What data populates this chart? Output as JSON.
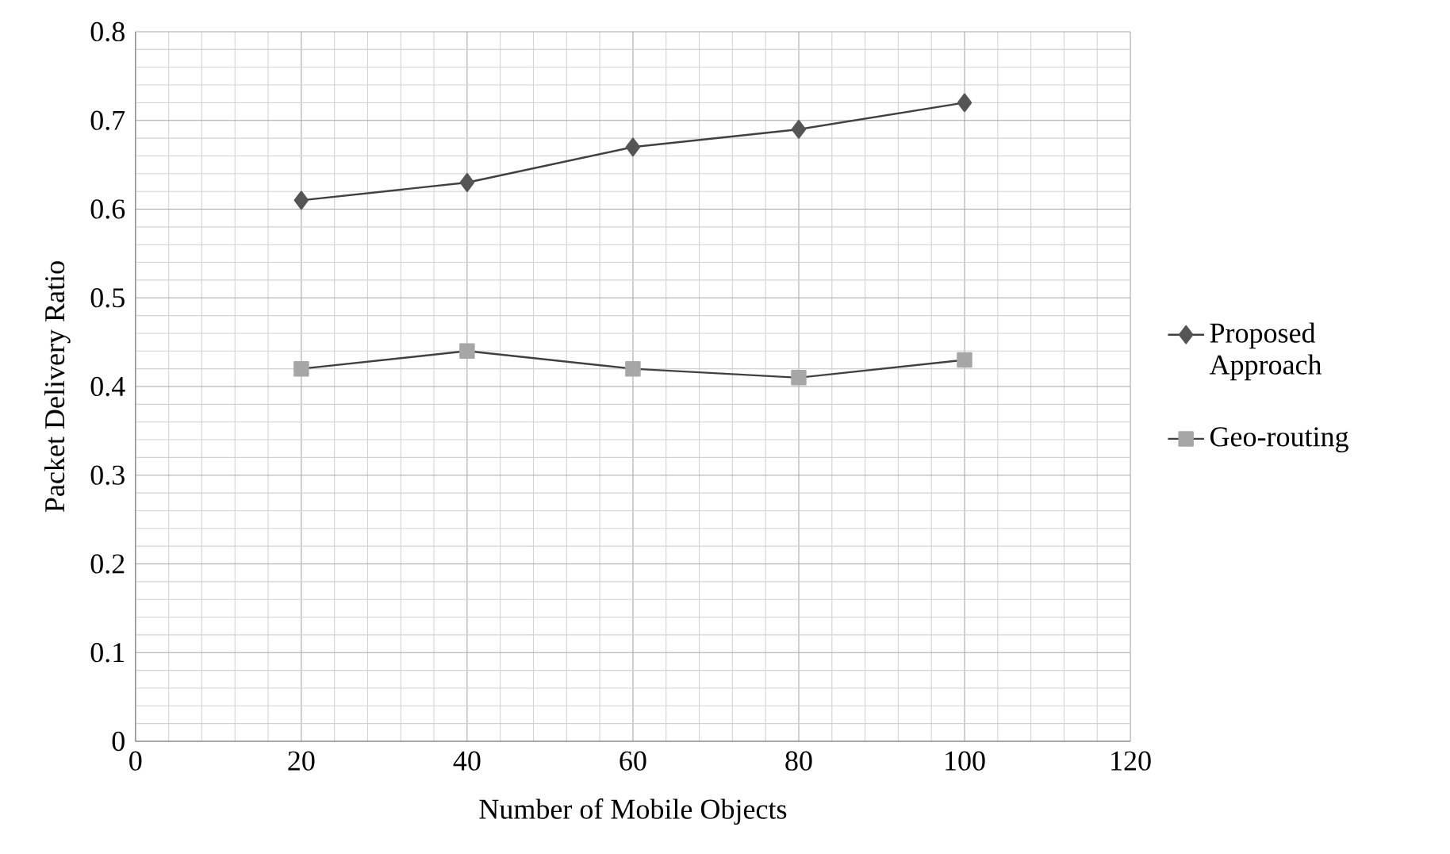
{
  "chart_data": {
    "type": "line",
    "xlabel": "Number of Mobile Objects",
    "ylabel": "Packet Delivery Ratio",
    "x": [
      20,
      40,
      60,
      80,
      100
    ],
    "series": [
      {
        "name": "Proposed Approach",
        "color": "#555555",
        "marker": "diamond",
        "values": [
          0.61,
          0.63,
          0.67,
          0.69,
          0.72
        ]
      },
      {
        "name": "Geo-routing",
        "color": "#a6a6a6",
        "marker": "square",
        "values": [
          0.42,
          0.44,
          0.42,
          0.41,
          0.43
        ]
      }
    ],
    "xlim": [
      0,
      120
    ],
    "xticks": [
      0,
      20,
      40,
      60,
      80,
      100,
      120
    ],
    "ylim": [
      0,
      0.8
    ],
    "yticks": [
      0,
      0.1,
      0.2,
      0.3,
      0.4,
      0.5,
      0.6,
      0.7,
      0.8
    ],
    "grid": true,
    "legend": "right"
  }
}
